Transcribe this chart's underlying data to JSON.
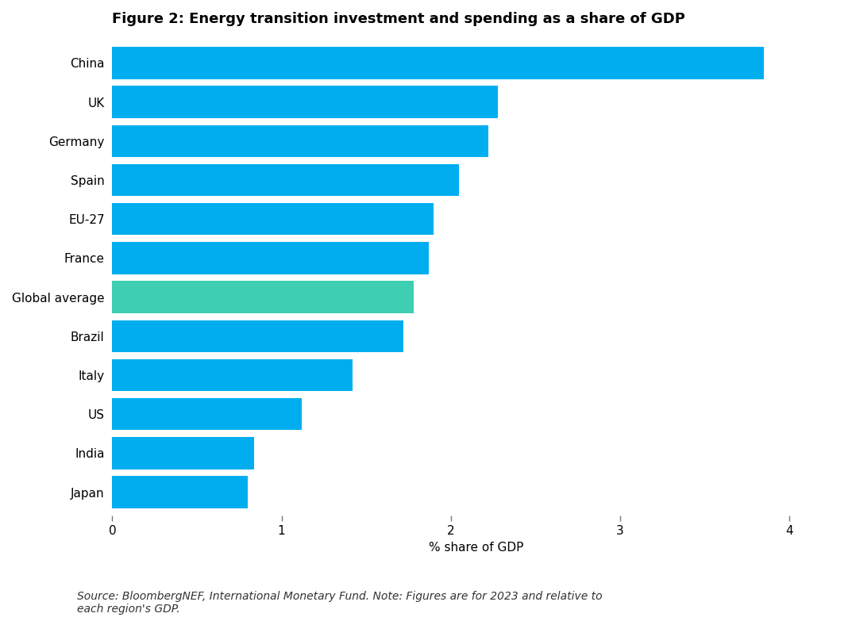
{
  "title": "Figure 2: Energy transition investment and spending as a share of GDP",
  "categories": [
    "China",
    "UK",
    "Germany",
    "Spain",
    "EU-27",
    "France",
    "Global average",
    "Brazil",
    "Italy",
    "US",
    "India",
    "Japan"
  ],
  "values": [
    3.85,
    2.28,
    2.22,
    2.05,
    1.9,
    1.87,
    1.78,
    1.72,
    1.42,
    1.12,
    0.84,
    0.8
  ],
  "bar_colors": [
    "#00AEEF",
    "#00AEEF",
    "#00AEEF",
    "#00AEEF",
    "#00AEEF",
    "#00AEEF",
    "#3ECFB2",
    "#00AEEF",
    "#00AEEF",
    "#00AEEF",
    "#00AEEF",
    "#00AEEF"
  ],
  "xlabel": "% share of GDP",
  "xlim": [
    0,
    4.3
  ],
  "xticks": [
    0,
    1,
    2,
    3,
    4
  ],
  "background_color": "#FFFFFF",
  "source_text": "Source: BloombergNEF, International Monetary Fund. Note: Figures are for 2023 and relative to\neach region's GDP.",
  "title_fontsize": 13,
  "label_fontsize": 11,
  "tick_fontsize": 11,
  "source_fontsize": 10,
  "bar_height": 0.82,
  "grid_color": "#CCCCCC"
}
